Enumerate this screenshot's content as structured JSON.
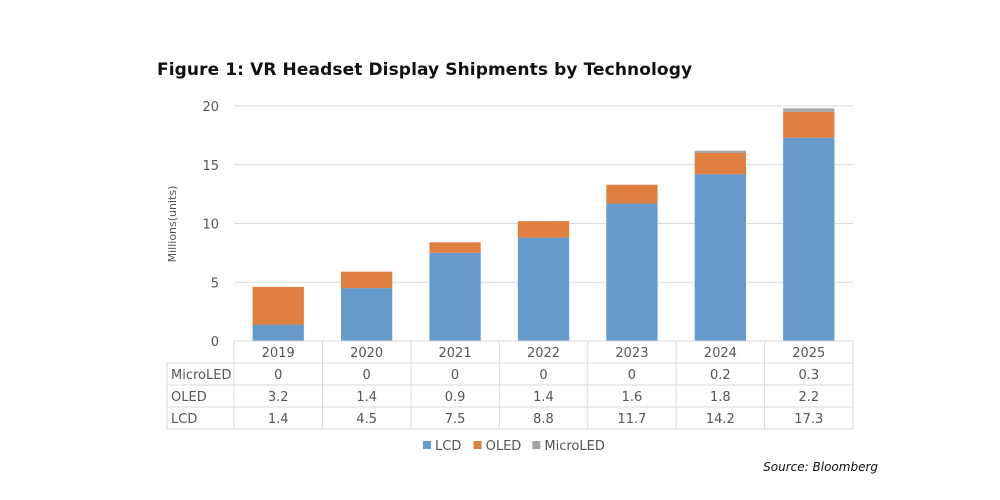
{
  "title": "Figure 1: VR Headset Display Shipments by Technology",
  "source": "Source: Bloomberg",
  "chart_data": {
    "type": "bar",
    "stacked": true,
    "title": "Figure 1: VR Headset Display Shipments by Technology",
    "xlabel": "",
    "ylabel": "Millions(units)",
    "ylim": [
      0,
      20
    ],
    "yticks": [
      0,
      5,
      10,
      15,
      20
    ],
    "grid": true,
    "legend_position": "bottom",
    "categories": [
      "2019",
      "2020",
      "2021",
      "2022",
      "2023",
      "2024",
      "2025"
    ],
    "series": [
      {
        "name": "LCD",
        "color": "#6699cc",
        "values": [
          1.4,
          4.5,
          7.5,
          8.8,
          11.7,
          14.2,
          17.3
        ]
      },
      {
        "name": "OLED",
        "color": "#e07f3f",
        "values": [
          3.2,
          1.4,
          0.9,
          1.4,
          1.6,
          1.8,
          2.2
        ]
      },
      {
        "name": "MicroLED",
        "color": "#a5a5a5",
        "values": [
          0,
          0,
          0,
          0,
          0,
          0.2,
          0.3
        ]
      }
    ],
    "data_table_rows": [
      "MicroLED",
      "OLED",
      "LCD"
    ]
  }
}
